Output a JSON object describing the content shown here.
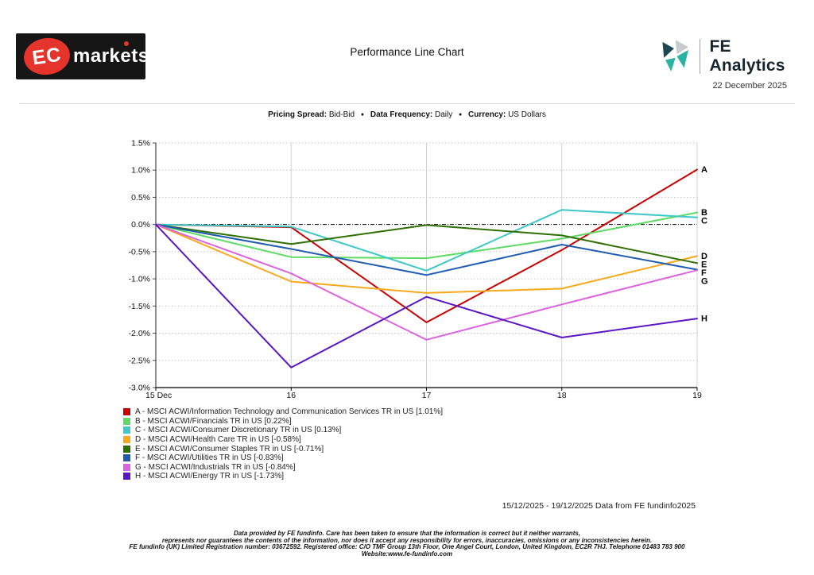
{
  "header": {
    "logo_ec": "EC",
    "logo_markets": "markets",
    "title": "Performance Line Chart",
    "fe_logo_text": "FE Analytics",
    "date": "22 December 2025"
  },
  "meta_line": {
    "pricing_spread_label": "Pricing Spread:",
    "pricing_spread_value": "Bid-Bid",
    "bullet": "●",
    "data_frequency_label": "Data Frequency:",
    "data_frequency_value": "Daily",
    "currency_label": "Currency:",
    "currency_value": "US Dollars"
  },
  "chart_data": {
    "type": "line",
    "title": "Performance Line Chart",
    "x_labels": [
      "15 Dec",
      "16",
      "17",
      "18",
      "19"
    ],
    "y_tick_labels": [
      "1.5%",
      "1.0%",
      "0.5%",
      "0.0%",
      "-0.5%",
      "-1.0%",
      "-1.5%",
      "-2.0%",
      "-2.5%",
      "-3.0%"
    ],
    "ylim": [
      -3.0,
      1.5
    ],
    "y_tick_step": 0.5,
    "grid": true,
    "zero_line_style": "black dash-dot",
    "legend_position": "bottom-left",
    "series": [
      {
        "id": "A",
        "name": "MSCI ACWI/Information Technology and Communication Services TR in US",
        "final_return_pct": 1.01,
        "color": "#c80000",
        "values": [
          0,
          -0.05,
          -1.8,
          -0.47,
          1.01
        ],
        "legend_label": "A - MSCI ACWI/Information Technology and Communication Services TR in US [1.01%]"
      },
      {
        "id": "B",
        "name": "MSCI ACWI/Financials TR in US",
        "final_return_pct": 0.22,
        "color": "#5edb64",
        "values": [
          0,
          -0.6,
          -0.62,
          -0.26,
          0.22
        ],
        "legend_label": "B - MSCI ACWI/Financials TR in US [0.22%]"
      },
      {
        "id": "C",
        "name": "MSCI ACWI/Consumer Discretionary TR in US",
        "final_return_pct": 0.13,
        "color": "#3fc8c8",
        "values": [
          0,
          -0.04,
          -0.85,
          0.27,
          0.13
        ],
        "legend_label": "C - MSCI ACWI/Consumer Discretionary TR in US [0.13%]"
      },
      {
        "id": "D",
        "name": "MSCI ACWI/Health Care TR in US",
        "final_return_pct": -0.58,
        "color": "#f7a81b",
        "values": [
          0,
          -1.05,
          -1.26,
          -1.18,
          -0.58
        ],
        "legend_label": "D - MSCI ACWI/Health Care TR in US [-0.58%]"
      },
      {
        "id": "E",
        "name": "MSCI ACWI/Consumer Staples TR in US",
        "final_return_pct": -0.71,
        "color": "#306e04",
        "values": [
          0,
          -0.36,
          -0.01,
          -0.2,
          -0.71
        ],
        "legend_label": "E - MSCI ACWI/Consumer Staples TR in US [-0.71%]"
      },
      {
        "id": "F",
        "name": "MSCI ACWI/Utilities TR in US",
        "final_return_pct": -0.83,
        "color": "#1f5cb0",
        "values": [
          0,
          -0.45,
          -0.93,
          -0.37,
          -0.83
        ],
        "legend_label": "F - MSCI ACWI/Utilities TR in US [-0.83%]"
      },
      {
        "id": "G",
        "name": "MSCI ACWI/Industrials TR in US",
        "final_return_pct": -0.84,
        "color": "#db63de",
        "values": [
          0,
          -0.9,
          -2.12,
          -1.47,
          -0.84
        ],
        "legend_label": "G - MSCI ACWI/Industrials TR in US [-0.84%]"
      },
      {
        "id": "H",
        "name": "MSCI ACWI/Energy TR in US",
        "final_return_pct": -1.73,
        "color": "#5a16c2",
        "values": [
          0,
          -2.63,
          -1.33,
          -2.08,
          -1.73
        ],
        "legend_label": "H - MSCI ACWI/Energy TR in US [-1.73%]"
      }
    ],
    "footnote": "15/12/2025 - 19/12/2025 Data from FE fundinfo2025"
  },
  "footer": {
    "lines": [
      "Data provided by FE fundinfo. Care has been taken to ensure that the information is correct but it neither warrants,",
      "represents nor guarantees the contents of the information, nor does it accept any responsibility for errors, inaccuracies, omissions or any inconsistencies herein.",
      "FE fundinfo (UK) Limited Registration number: 03672592. Registered office: C/O TMF Group 13th Floor, One Angel Court, London, United Kingdom, EC2R 7HJ. Telephone 01483 783 900",
      "Website:www.fe-fundinfo.com"
    ]
  }
}
